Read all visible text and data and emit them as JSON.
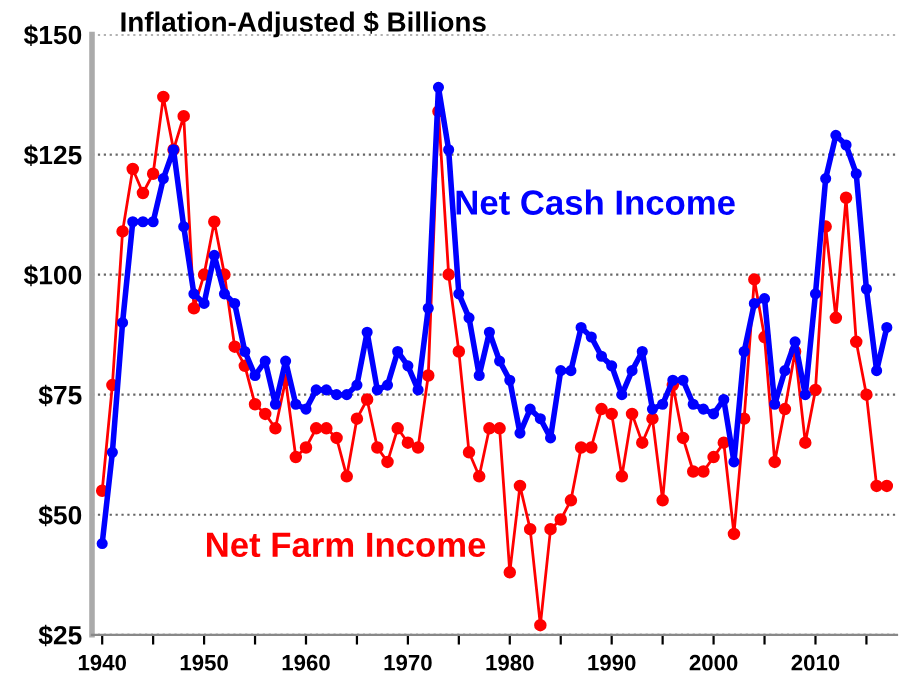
{
  "chart_data": {
    "type": "line",
    "title": "Inflation-Adjusted $ Billions",
    "x": [
      1940,
      1941,
      1942,
      1943,
      1944,
      1945,
      1946,
      1947,
      1948,
      1949,
      1950,
      1951,
      1952,
      1953,
      1954,
      1955,
      1956,
      1957,
      1958,
      1959,
      1960,
      1961,
      1962,
      1963,
      1964,
      1965,
      1966,
      1967,
      1968,
      1969,
      1970,
      1971,
      1972,
      1973,
      1974,
      1975,
      1976,
      1977,
      1978,
      1979,
      1980,
      1981,
      1982,
      1983,
      1984,
      1985,
      1986,
      1987,
      1988,
      1989,
      1990,
      1991,
      1992,
      1993,
      1994,
      1995,
      1996,
      1997,
      1998,
      1999,
      2000,
      2001,
      2002,
      2003,
      2004,
      2005,
      2006,
      2007,
      2008,
      2009,
      2010,
      2011,
      2012,
      2013,
      2014,
      2015,
      2016,
      2017
    ],
    "series": [
      {
        "name": "Net Cash Income",
        "color": "#0000ff",
        "values": [
          44,
          63,
          90,
          111,
          111,
          111,
          120,
          126,
          110,
          96,
          94,
          104,
          96,
          94,
          84,
          79,
          82,
          73,
          82,
          73,
          72,
          76,
          76,
          75,
          75,
          77,
          88,
          76,
          77,
          84,
          81,
          76,
          93,
          139,
          126,
          96,
          91,
          79,
          88,
          82,
          78,
          67,
          72,
          70,
          66,
          80,
          80,
          89,
          87,
          83,
          81,
          75,
          80,
          84,
          72,
          73,
          78,
          78,
          73,
          72,
          71,
          74,
          61,
          84,
          94,
          95,
          73,
          80,
          86,
          75,
          96,
          120,
          129,
          127,
          121,
          97,
          80,
          89
        ]
      },
      {
        "name": "Net Farm Income",
        "color": "#ff0000",
        "values": [
          55,
          77,
          109,
          122,
          117,
          121,
          137,
          126,
          133,
          93,
          100,
          111,
          100,
          85,
          81,
          73,
          71,
          68,
          78,
          62,
          64,
          68,
          68,
          66,
          58,
          70,
          74,
          64,
          61,
          68,
          65,
          64,
          79,
          134,
          100,
          84,
          63,
          58,
          68,
          68,
          38,
          56,
          47,
          27,
          47,
          49,
          53,
          64,
          64,
          72,
          71,
          58,
          71,
          65,
          70,
          53,
          77,
          66,
          59,
          59,
          62,
          65,
          46,
          70,
          99,
          87,
          61,
          72,
          84,
          65,
          76,
          110,
          91,
          116,
          86,
          75,
          56,
          56
        ]
      }
    ],
    "xlim": [
      1939,
      2018
    ],
    "xticks": [
      1940,
      {
        "value": 1945,
        "label": null
      },
      1950,
      {
        "value": 1955,
        "label": null
      },
      1960,
      {
        "value": 1965,
        "label": null
      },
      1970,
      {
        "value": 1975,
        "label": null
      },
      1980,
      {
        "value": 1985,
        "label": null
      },
      1990,
      {
        "value": 1995,
        "label": null
      },
      2000,
      {
        "value": 2005,
        "label": null
      },
      2010,
      {
        "value": 2015,
        "label": null
      }
    ],
    "ylim": [
      25,
      150
    ],
    "yticks": [
      {
        "value": 25,
        "label": "$25"
      },
      {
        "value": 50,
        "label": "$50"
      },
      {
        "value": 75,
        "label": "$75"
      },
      {
        "value": 100,
        "label": "$100"
      },
      {
        "value": 125,
        "label": "$125"
      },
      {
        "value": 150,
        "label": "$150"
      }
    ],
    "grid": "y",
    "marker": "circle",
    "line_style": "solid",
    "legend": false
  }
}
